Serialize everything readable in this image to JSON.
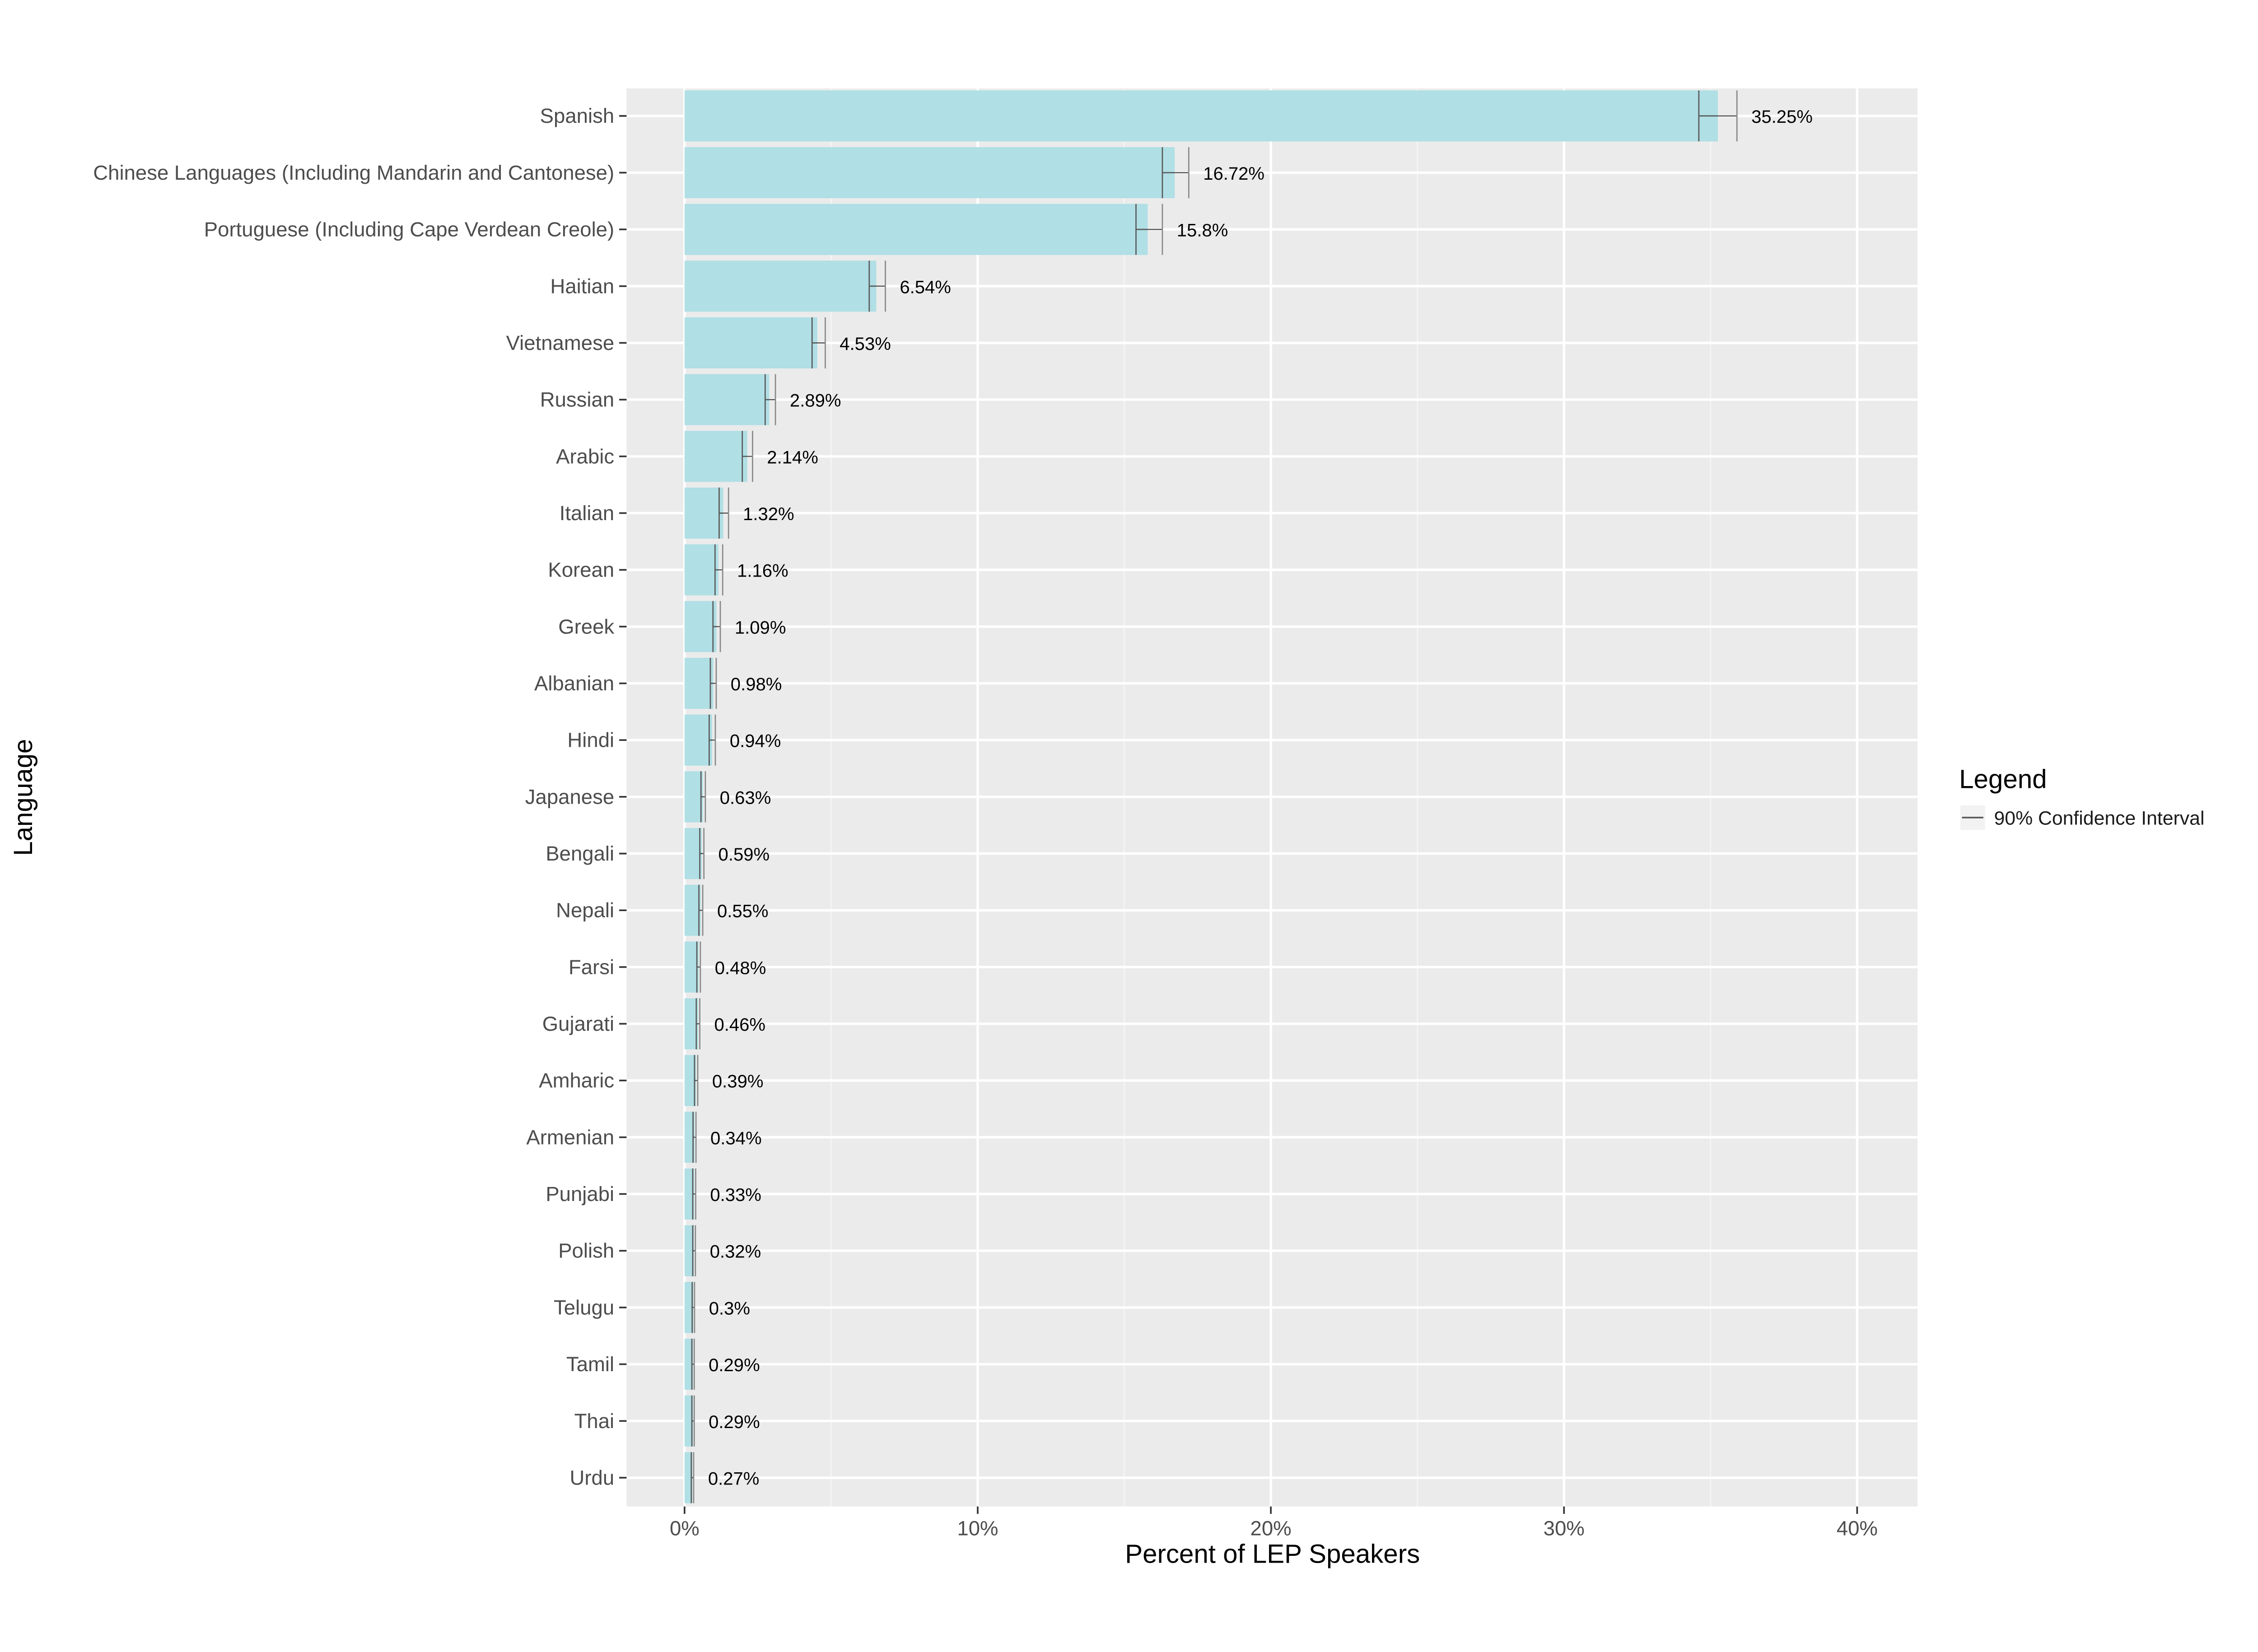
{
  "chart_data": {
    "type": "bar",
    "orientation": "horizontal",
    "title": "",
    "xlabel": "Percent of LEP Speakers",
    "ylabel": "Language",
    "xlim": [
      -0.02,
      0.42
    ],
    "x_ticks": [
      0,
      0.1,
      0.2,
      0.3,
      0.4
    ],
    "x_tick_labels": [
      "0%",
      "10%",
      "20%",
      "30%",
      "40%"
    ],
    "grid": true,
    "bar_color": "#b0dfe5",
    "panel_color": "#ebebeb",
    "errorbar_color": "#5a5a5a",
    "categories": [
      "Spanish",
      "Chinese Languages (Including Mandarin and Cantonese)",
      "Portuguese (Including Cape Verdean Creole)",
      "Haitian",
      "Vietnamese",
      "Russian",
      "Arabic",
      "Italian",
      "Korean",
      "Greek",
      "Albanian",
      "Hindi",
      "Japanese",
      "Bengali",
      "Nepali",
      "Farsi",
      "Gujarati",
      "Amharic",
      "Armenian",
      "Punjabi",
      "Polish",
      "Telugu",
      "Tamil",
      "Thai",
      "Urdu"
    ],
    "values": [
      35.25,
      16.72,
      15.8,
      6.54,
      4.53,
      2.89,
      2.14,
      1.32,
      1.16,
      1.09,
      0.98,
      0.94,
      0.63,
      0.59,
      0.55,
      0.48,
      0.46,
      0.39,
      0.34,
      0.33,
      0.32,
      0.3,
      0.29,
      0.29,
      0.27
    ],
    "data_labels": [
      "35.25%",
      "16.72%",
      "15.8%",
      "6.54%",
      "4.53%",
      "2.89%",
      "2.14%",
      "1.32%",
      "1.16%",
      "1.09%",
      "0.98%",
      "0.94%",
      "0.63%",
      "0.59%",
      "0.55%",
      "0.48%",
      "0.46%",
      "0.39%",
      "0.34%",
      "0.33%",
      "0.32%",
      "0.3%",
      "0.29%",
      "0.29%",
      "0.27%"
    ],
    "ci_low": [
      34.6,
      16.3,
      15.4,
      6.3,
      4.35,
      2.75,
      1.97,
      1.18,
      1.04,
      0.97,
      0.88,
      0.84,
      0.56,
      0.52,
      0.49,
      0.42,
      0.4,
      0.34,
      0.29,
      0.28,
      0.28,
      0.26,
      0.25,
      0.25,
      0.23
    ],
    "ci_high": [
      35.9,
      17.2,
      16.3,
      6.85,
      4.8,
      3.1,
      2.32,
      1.5,
      1.3,
      1.22,
      1.08,
      1.05,
      0.71,
      0.66,
      0.62,
      0.54,
      0.52,
      0.45,
      0.39,
      0.38,
      0.37,
      0.34,
      0.33,
      0.33,
      0.31
    ],
    "legend": {
      "title": "Legend",
      "entries": [
        "90% Confidence Interval"
      ],
      "position": "right"
    }
  }
}
